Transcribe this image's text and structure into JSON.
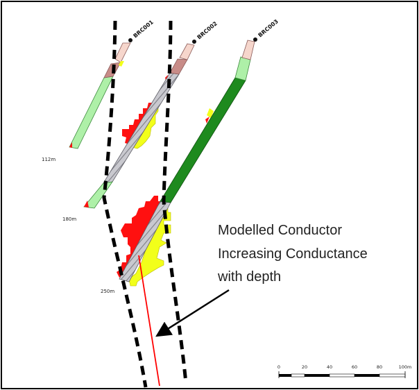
{
  "drillholes": [
    {
      "id": "BRC001",
      "depth_label": "112m"
    },
    {
      "id": "BRC002",
      "depth_label": "180m"
    },
    {
      "id": "BRC003",
      "depth_label": "250m"
    }
  ],
  "annotation": {
    "line1": "Modelled Conductor",
    "line2": "Increasing Conductance",
    "line3": "with depth"
  },
  "scale_bar": {
    "ticks": [
      "0",
      "20",
      "40",
      "60",
      "80",
      "100m"
    ]
  },
  "colors": {
    "conductor_lines": "#000000",
    "conductor_trace": "#ff0000",
    "em_response_red": "#ff0000",
    "em_response_yellow": "#f2ff1a",
    "trace_light_green": "#aef0a8",
    "trace_dark_green": "#1e8a1e",
    "trace_grey_hatch": "#b8b8c0",
    "collar_pink": "#f6d6cc",
    "collar_brown": "#c88c88"
  }
}
